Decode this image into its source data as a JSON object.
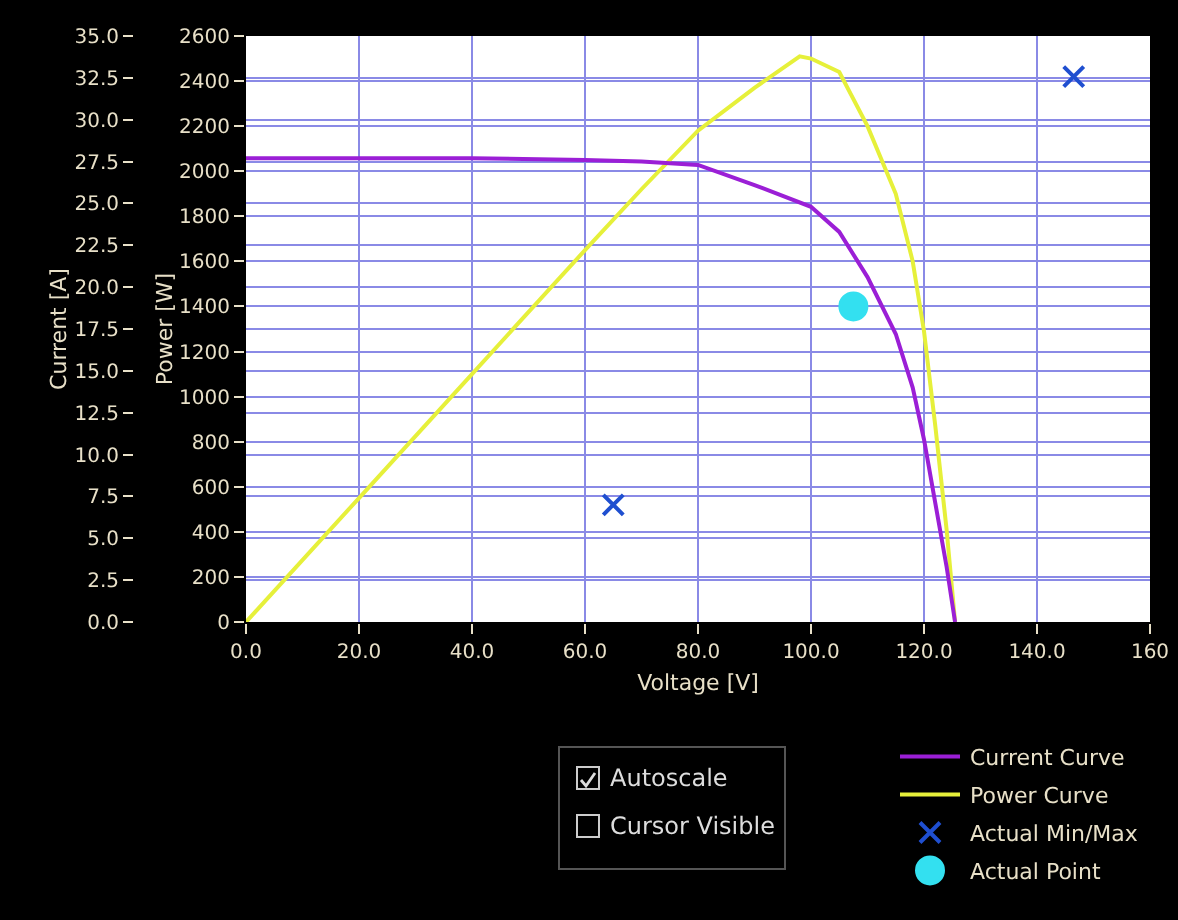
{
  "chart_data": {
    "type": "line",
    "xlabel": "Voltage [V]",
    "ylabel": "Power [W]",
    "y2label": "Current [A]",
    "xlim": [
      0,
      160
    ],
    "xticks": [
      {
        "value": 0,
        "label": "0.0"
      },
      {
        "value": 20,
        "label": "20.0"
      },
      {
        "value": 40,
        "label": "40.0"
      },
      {
        "value": 60,
        "label": "60.0"
      },
      {
        "value": 80,
        "label": "80.0"
      },
      {
        "value": 100,
        "label": "100.0"
      },
      {
        "value": 120,
        "label": "120.0"
      },
      {
        "value": 140,
        "label": "140.0"
      },
      160
    ],
    "ylim": [
      0,
      2600
    ],
    "yticks": [
      0,
      200,
      400,
      600,
      800,
      1000,
      1200,
      1400,
      1600,
      1800,
      2000,
      2200,
      2400,
      2600
    ],
    "y2lim": [
      0,
      35
    ],
    "y2ticks": [
      {
        "value": 0,
        "label": "0.0"
      },
      2.5,
      {
        "value": 5,
        "label": "5.0"
      },
      7.5,
      {
        "value": 10,
        "label": "10.0"
      },
      12.5,
      {
        "value": 15,
        "label": "15.0"
      },
      17.5,
      {
        "value": 20,
        "label": "20.0"
      },
      22.5,
      {
        "value": 25,
        "label": "25.0"
      },
      27.5,
      {
        "value": 30,
        "label": "30.0"
      },
      32.5,
      {
        "value": 35,
        "label": "35.0"
      }
    ],
    "grid": true,
    "legend": "bottom right",
    "line_style": "solid",
    "series": [
      {
        "name": "Current Curve",
        "type": "line",
        "color": "#9b1fd6",
        "marker": "none",
        "axis": "y2",
        "x": [
          0,
          20,
          40,
          60,
          70,
          80,
          90,
          100,
          105,
          110,
          115,
          118,
          120,
          122,
          124,
          125.5
        ],
        "values": [
          27.7,
          27.7,
          27.7,
          27.6,
          27.5,
          27.3,
          26.1,
          24.8,
          23.3,
          20.6,
          17.2,
          14.0,
          10.9,
          7.1,
          3.3,
          0
        ]
      },
      {
        "name": "Power Curve",
        "type": "line",
        "color": "#e6f03a",
        "marker": "none",
        "x": [
          0,
          20,
          40,
          60,
          70,
          80,
          90,
          98,
          100,
          105,
          110,
          115,
          118,
          120,
          122,
          124,
          125.5
        ],
        "values": [
          0,
          550,
          1100,
          1650,
          1920,
          2180,
          2370,
          2510,
          2500,
          2440,
          2200,
          1900,
          1600,
          1290,
          870,
          410,
          0
        ]
      },
      {
        "name": "Actual Min/Max",
        "type": "scatter",
        "color": "#1f4fd0",
        "marker": "cross",
        "x": [
          65,
          146.5
        ],
        "values": [
          520,
          2420
        ]
      },
      {
        "name": "Actual Point",
        "type": "scatter",
        "color": "#33e0f0",
        "marker": "circle",
        "x": [
          107.5
        ],
        "values": [
          1400
        ]
      }
    ],
    "annotations": [
      "Autoscale",
      "Cursor Visible"
    ]
  }
}
